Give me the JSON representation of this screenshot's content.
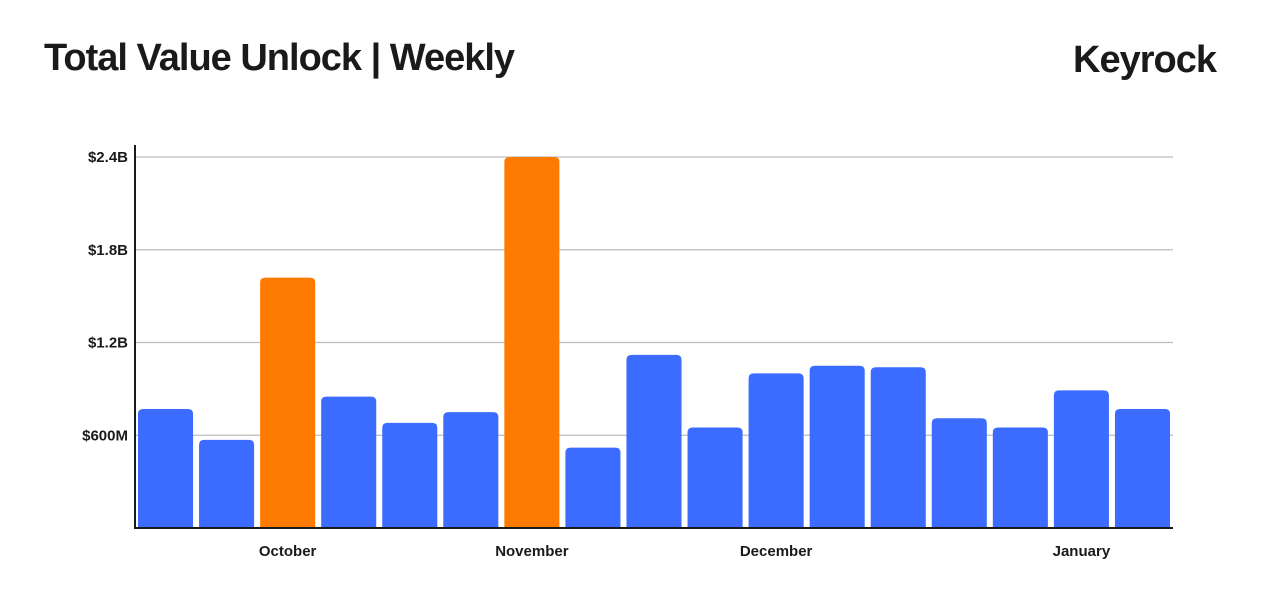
{
  "header": {
    "title": "Total Value Unlock | Weekly",
    "brand": "Keyrock"
  },
  "colors": {
    "blue": "#3b6cff",
    "orange": "#ff7a00",
    "grid": "#bdbdbd",
    "axis": "#1a1a1a"
  },
  "chart_data": {
    "type": "bar",
    "title": "Total Value Unlock | Weekly",
    "xlabel": "",
    "ylabel": "",
    "ylim": [
      0,
      2.4
    ],
    "unit": "B USD",
    "y_ticks": [
      {
        "value": 0.6,
        "label": "$600M"
      },
      {
        "value": 1.2,
        "label": "$1.2B"
      },
      {
        "value": 1.8,
        "label": "$1.8B"
      },
      {
        "value": 2.4,
        "label": "$2.4B"
      }
    ],
    "x_month_labels": [
      {
        "label": "October",
        "at_bar": 2.5
      },
      {
        "label": "November",
        "at_bar": 6.5
      },
      {
        "label": "December",
        "at_bar": 10.5
      },
      {
        "label": "January",
        "at_bar": 15.5
      }
    ],
    "grid": true,
    "values": [
      0.77,
      0.57,
      1.62,
      0.85,
      0.68,
      0.75,
      2.4,
      0.52,
      1.12,
      0.65,
      1.0,
      1.05,
      1.04,
      0.71,
      0.65,
      0.89,
      0.77
    ],
    "highlight": [
      false,
      false,
      true,
      false,
      false,
      false,
      true,
      false,
      false,
      false,
      false,
      false,
      false,
      false,
      false,
      false,
      false
    ]
  }
}
